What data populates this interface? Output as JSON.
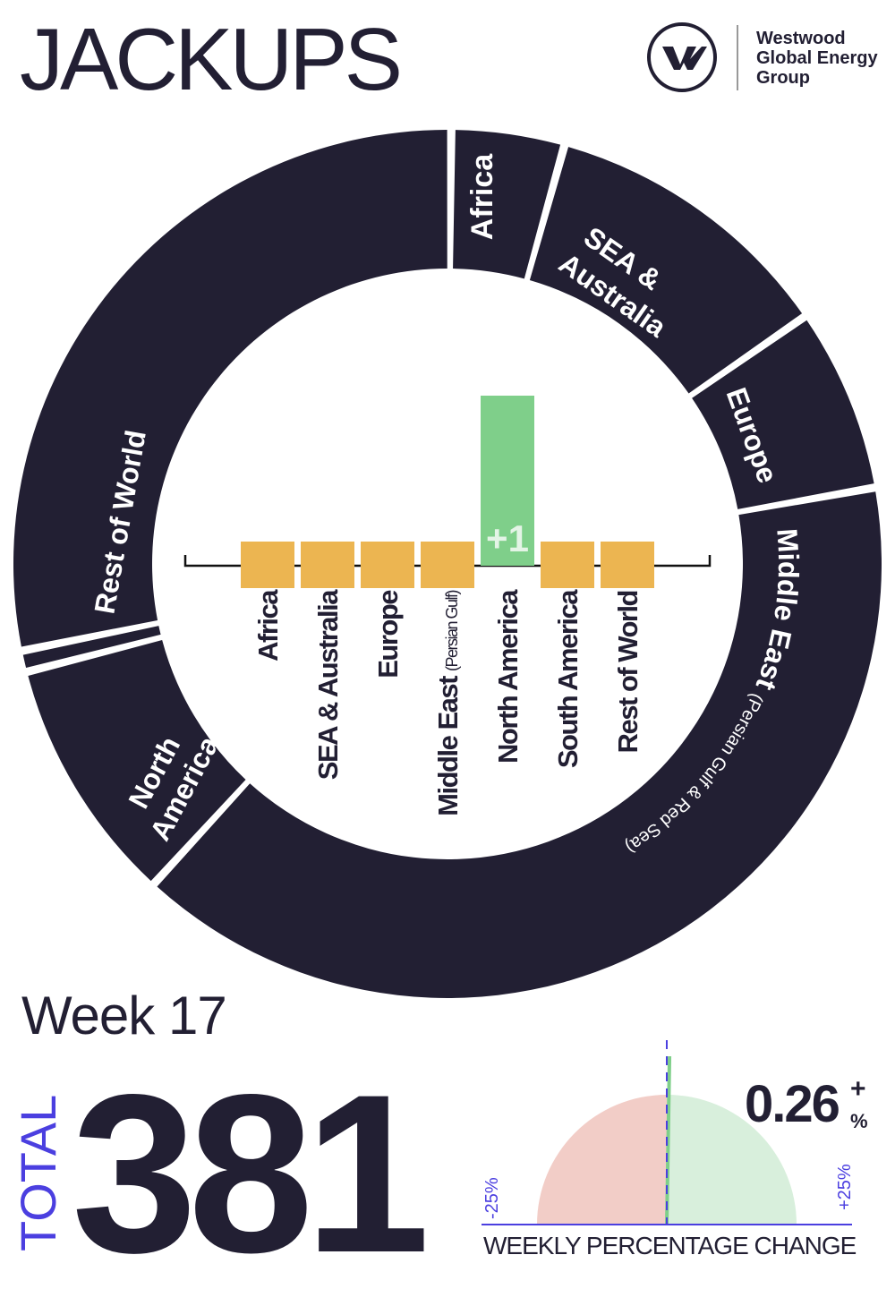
{
  "header": {
    "title": "JACKUPS",
    "logo": {
      "name": "w-logo-icon",
      "lines": [
        "Westwood",
        "Global Energy",
        "Group"
      ]
    }
  },
  "colors": {
    "navy": "#221f33",
    "bar_zero": "#ecb551",
    "bar_positive": "#7fcf8a",
    "gauge_negative": "#f2cdc7",
    "gauge_positive": "#d8efdc",
    "accent_blue": "#4b3fe0"
  },
  "chart_data": [
    {
      "type": "pie",
      "variant": "donut",
      "categories": [
        "Africa",
        "SEA & Australia",
        "Europe",
        "Middle East (Persian Gulf & Red Sea)",
        "North America",
        "South America",
        "Rest of World"
      ],
      "labels": {
        "africa": "Africa",
        "sea_1": "SEA &",
        "sea_2": "Australia",
        "europe": "Europe",
        "me_main": "Middle East",
        "me_sub": "(Persian Gulf & Red Sea)",
        "na_1": "North",
        "na_2": "America",
        "row": "Rest of World"
      },
      "values": [
        16,
        42,
        26,
        151,
        35,
        3,
        108
      ]
    },
    {
      "type": "bar",
      "title": "",
      "categories": [
        "Africa",
        "SEA & Australia",
        "Europe",
        "Middle East",
        "North America",
        "South America",
        "Rest of World"
      ],
      "category_sub": {
        "Middle East": "(Persian Gulf)"
      },
      "values": [
        0,
        0,
        0,
        0,
        1,
        0,
        0
      ],
      "data_labels": {
        "North America": "+1"
      }
    },
    {
      "type": "gauge",
      "title": "WEEKLY PERCENTAGE CHANGE",
      "range": [
        -25,
        25
      ],
      "min_label": "-25%",
      "max_label": "+25%",
      "value": 0.26,
      "value_label": "0.26",
      "sign": "+",
      "unit": "%"
    }
  ],
  "summary": {
    "week": "Week 17",
    "total_label": "TOTAL",
    "total": "381"
  }
}
